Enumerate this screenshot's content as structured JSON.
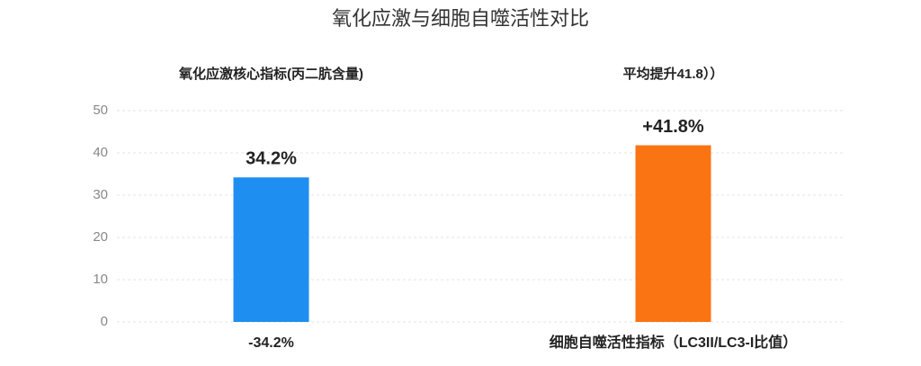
{
  "chart_data": {
    "type": "bar",
    "title": "氧化应激与细胞自噬活性对比",
    "annotations": [
      "氧化应激核心指标(丙二肮含量)",
      "平均提升41.8））"
    ],
    "categories": [
      "-34.2%",
      "细胞自噬活性指标（LC3II/LC3-I比值）"
    ],
    "values": [
      34.2,
      41.8
    ],
    "value_labels": [
      "34.2%",
      "+41.8%"
    ],
    "colors": [
      "#1e8ff0",
      "#fb7414"
    ],
    "ylim": [
      0,
      50
    ],
    "yticks": [
      0,
      10,
      20,
      30,
      40,
      50
    ],
    "grid": true
  }
}
